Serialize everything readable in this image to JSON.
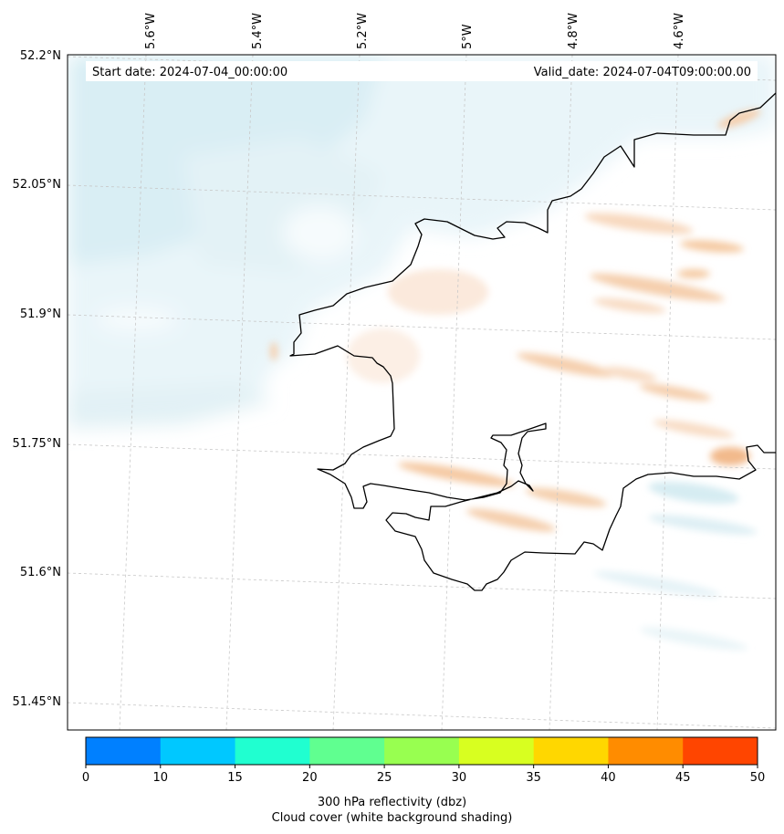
{
  "header": {
    "start_date": "Start date: 2024-07-04_00:00:00",
    "valid_date": "Valid_date: 2024-07-04T09:00:00.00"
  },
  "map": {
    "lon_labels": [
      "5.6°W",
      "5.4°W",
      "5.2°W",
      "5°W",
      "4.8°W",
      "4.6°W"
    ],
    "lat_labels": [
      "52.2°N",
      "52.05°N",
      "51.9°N",
      "51.75°N",
      "51.6°N",
      "51.45°N"
    ],
    "gridlines": "dashed",
    "background_shading": "cloud cover"
  },
  "colorbar": {
    "ticks": [
      "0",
      "10",
      "15",
      "20",
      "25",
      "30",
      "35",
      "40",
      "45",
      "50"
    ],
    "colors": [
      "#0080ff",
      "#00c8ff",
      "#20ffd0",
      "#60ff90",
      "#98ff50",
      "#d8ff20",
      "#ffd700",
      "#ff8c00",
      "#ff4500"
    ],
    "label_line1": "300 hPa reflectivity (dbz)",
    "label_line2": "Cloud cover (white background shading)"
  }
}
